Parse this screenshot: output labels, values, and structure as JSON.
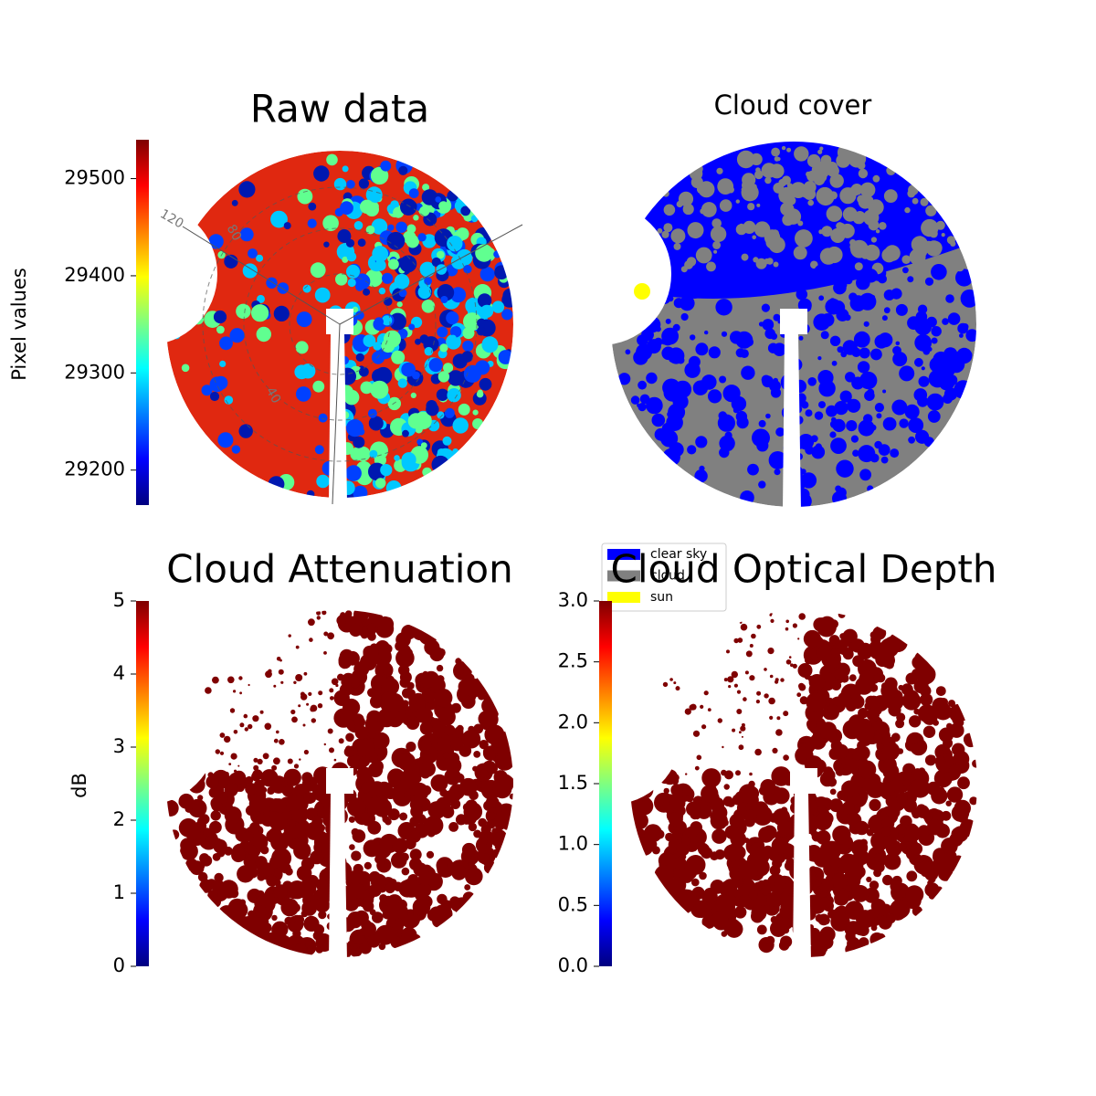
{
  "chart_data": [
    {
      "type": "heatmap",
      "title": "Raw data",
      "colormap": "jet",
      "colorbar_label": "Pixel values",
      "clim": [
        29164,
        29540
      ],
      "cticks": [
        29200,
        29300,
        29400,
        29500
      ],
      "annotations": [
        "120",
        "80",
        "40"
      ]
    },
    {
      "type": "categorical",
      "title": "Cloud cover",
      "classes": [
        {
          "name": "clear sky",
          "color": "#0000ff"
        },
        {
          "name": "cloud",
          "color": "#808080"
        },
        {
          "name": "sun",
          "color": "#ffff00"
        }
      ]
    },
    {
      "type": "heatmap",
      "title": "Cloud Attenuation",
      "colormap": "jet",
      "colorbar_label": "dB",
      "clim": [
        0,
        5
      ],
      "cticks": [
        0,
        1,
        2,
        3,
        4,
        5
      ]
    },
    {
      "type": "heatmap",
      "title": "Cloud Optical Depth",
      "colormap": "jet",
      "clim": [
        0,
        3
      ],
      "cticks": [
        {
          "value": 0,
          "label": "0.0"
        },
        0.5,
        {
          "value": 1,
          "label": "1.0"
        },
        1.5,
        {
          "value": 2,
          "label": "2.0"
        },
        2.5,
        {
          "value": 3,
          "label": "3.0"
        }
      ]
    }
  ]
}
